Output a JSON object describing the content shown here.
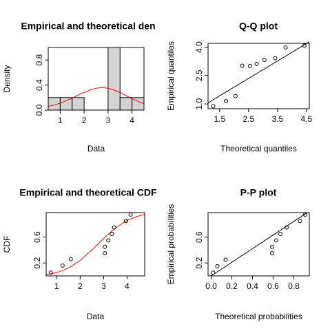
{
  "chart_data": [
    {
      "panel": "density",
      "type": "bar",
      "title": "Empirical and theoretical den",
      "xlabel": "Data",
      "ylabel": "Density",
      "x_ticks": [
        "1",
        "2",
        "3",
        "4"
      ],
      "y_ticks": [
        "0.0",
        "0.4",
        "0.8"
      ],
      "xlim": [
        0.5,
        4.5
      ],
      "ylim": [
        0,
        1.0
      ],
      "bins": [
        {
          "from": 0.5,
          "to": 1.0,
          "density": 0.2
        },
        {
          "from": 1.0,
          "to": 1.5,
          "density": 0.2
        },
        {
          "from": 1.5,
          "to": 2.0,
          "density": 0.2
        },
        {
          "from": 2.0,
          "to": 2.5,
          "density": 0.0
        },
        {
          "from": 2.5,
          "to": 3.0,
          "density": 0.0
        },
        {
          "from": 3.0,
          "to": 3.5,
          "density": 1.0
        },
        {
          "from": 3.5,
          "to": 4.0,
          "density": 0.2
        },
        {
          "from": 4.0,
          "to": 4.5,
          "density": 0.2
        }
      ],
      "curve": {
        "x": [
          0.5,
          0.75,
          1.0,
          1.25,
          1.5,
          1.75,
          2.0,
          2.25,
          2.5,
          2.75,
          3.0,
          3.25,
          3.5,
          3.75,
          4.0,
          4.25,
          4.5
        ],
        "y": [
          0.06,
          0.08,
          0.11,
          0.15,
          0.19,
          0.24,
          0.28,
          0.32,
          0.35,
          0.36,
          0.35,
          0.32,
          0.28,
          0.23,
          0.18,
          0.14,
          0.1
        ]
      },
      "colors": {
        "bar_fill": "#d3d3d3",
        "curve": "#ff0000"
      },
      "grid": false
    },
    {
      "panel": "qq",
      "type": "scatter",
      "title": "Q-Q plot",
      "xlabel": "Theoretical quantiles",
      "ylabel": "Empirical quantiles",
      "x_ticks": [
        "1.5",
        "2.5",
        "3.5",
        "4.5"
      ],
      "y_ticks": [
        "1.0",
        "2.5",
        "4.0"
      ],
      "xlim": [
        1.1,
        4.6
      ],
      "ylim": [
        0.75,
        4.2
      ],
      "points": {
        "x": [
          1.28,
          1.72,
          2.05,
          2.28,
          2.55,
          2.78,
          3.05,
          3.42,
          3.78,
          4.43
        ],
        "y": [
          0.88,
          1.15,
          1.42,
          3.02,
          3.0,
          3.12,
          3.33,
          3.42,
          3.98,
          4.08
        ]
      },
      "line": {
        "x": [
          1.1,
          4.6
        ],
        "y": [
          1.06,
          4.28
        ]
      },
      "grid": false
    },
    {
      "panel": "cdf",
      "type": "scatter",
      "title": "Empirical and theoretical CDF",
      "xlabel": "Data",
      "ylabel": "CDF",
      "x_ticks": [
        "1",
        "2",
        "3",
        "4"
      ],
      "y_ticks": [
        "0.2",
        "0.6"
      ],
      "xlim": [
        0.55,
        4.75
      ],
      "ylim": [
        0,
        0.98
      ],
      "points": {
        "x": [
          0.75,
          1.25,
          1.6,
          3.05,
          3.05,
          3.2,
          3.35,
          3.45,
          3.95,
          4.15
        ],
        "y": [
          0.05,
          0.16,
          0.26,
          0.35,
          0.45,
          0.55,
          0.65,
          0.75,
          0.85,
          0.95
        ]
      },
      "curve": {
        "x": [
          0.55,
          1.0,
          1.5,
          2.0,
          2.5,
          3.0,
          3.5,
          4.0,
          4.5,
          4.75
        ],
        "y": [
          0.02,
          0.05,
          0.12,
          0.24,
          0.4,
          0.58,
          0.74,
          0.86,
          0.93,
          0.95
        ]
      },
      "colors": {
        "curve": "#ff0000"
      },
      "grid": false
    },
    {
      "panel": "pp",
      "type": "scatter",
      "title": "P-P plot",
      "xlabel": "Theoretical probabilities",
      "ylabel": "Empirical probabilities",
      "x_ticks": [
        "0.0",
        "0.2",
        "0.4",
        "0.6",
        "0.8"
      ],
      "y_ticks": [
        "0.2",
        "0.6"
      ],
      "xlim": [
        -0.03,
        0.95
      ],
      "ylim": [
        0,
        0.98
      ],
      "points": {
        "x": [
          0.02,
          0.06,
          0.14,
          0.59,
          0.59,
          0.63,
          0.67,
          0.73,
          0.86,
          0.91
        ],
        "y": [
          0.05,
          0.15,
          0.25,
          0.35,
          0.45,
          0.55,
          0.65,
          0.75,
          0.85,
          0.95
        ]
      },
      "line": {
        "x": [
          0,
          0.92
        ],
        "y": [
          0,
          0.97
        ]
      },
      "grid": false
    }
  ]
}
